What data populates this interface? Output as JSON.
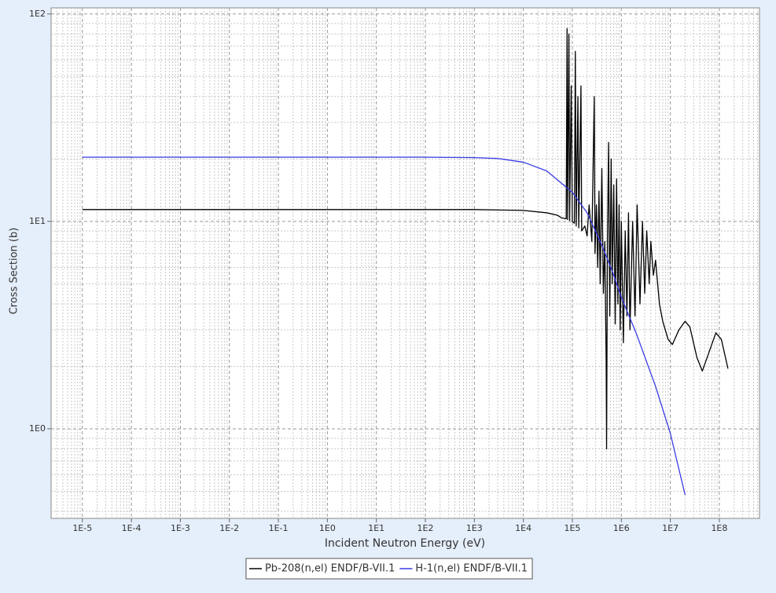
{
  "chart_data": {
    "type": "line",
    "x_label": "Incident Neutron Energy (eV)",
    "y_label": "Cross Section (b)",
    "log_x": true,
    "log_y": true,
    "grid": true,
    "legend": "bottom",
    "xlim": [
      2.3e-06,
      660000000.0
    ],
    "ylim": [
      0.37,
      107
    ],
    "xticks": [
      {
        "value": 1e-05,
        "label": "1E-5"
      },
      {
        "value": 0.0001,
        "label": "1E-4"
      },
      {
        "value": 0.001,
        "label": "1E-3"
      },
      {
        "value": 0.01,
        "label": "1E-2"
      },
      {
        "value": 0.1,
        "label": "1E-1"
      },
      {
        "value": 1,
        "label": "1E0"
      },
      {
        "value": 10,
        "label": "1E1"
      },
      {
        "value": 100,
        "label": "1E2"
      },
      {
        "value": 1000,
        "label": "1E3"
      },
      {
        "value": 10000,
        "label": "1E4"
      },
      {
        "value": 100000,
        "label": "1E5"
      },
      {
        "value": 1000000,
        "label": "1E6"
      },
      {
        "value": 10000000,
        "label": "1E7"
      },
      {
        "value": 100000000,
        "label": "1E8"
      }
    ],
    "yticks": [
      {
        "value": 1,
        "label": "1E0"
      },
      {
        "value": 10,
        "label": "1E1"
      },
      {
        "value": 100,
        "label": "1E2"
      }
    ],
    "series": [
      {
        "name": "Pb-208(n,el) ENDF/B-VII.1",
        "color": "#000000",
        "x": [
          1e-05,
          1000.0,
          10000.0,
          30000.0,
          50000.0,
          60000.0,
          75000.0,
          78000.0,
          80000.0,
          85000.0,
          88000.0,
          95000.0,
          100000.0,
          110000.0,
          115000.0,
          120000.0,
          130000.0,
          135000.0,
          150000.0,
          155000.0,
          180000.0,
          200000.0,
          220000.0,
          250000.0,
          280000.0,
          290000.0,
          310000.0,
          330000.0,
          350000.0,
          370000.0,
          400000.0,
          430000.0,
          460000.0,
          490000.0,
          500000.0,
          520000.0,
          550000.0,
          580000.0,
          620000.0,
          650000.0,
          700000.0,
          750000.0,
          800000.0,
          850000.0,
          900000.0,
          950000.0,
          1000000.0,
          1100000.0,
          1200000.0,
          1300000.0,
          1400000.0,
          1500000.0,
          1700000.0,
          1900000.0,
          2100000.0,
          2400000.0,
          2700000.0,
          3000000.0,
          3300000.0,
          3700000.0,
          4000000.0,
          4500000.0,
          5000000.0,
          5500000.0,
          6000000.0,
          7000000.0,
          9000000.0,
          11000000.0,
          15000000.0,
          20000000.0,
          25000000.0,
          35000000.0,
          45000000.0,
          60000000.0,
          85000000.0,
          110000000.0,
          150000000.0
        ],
        "values": [
          11.4,
          11.4,
          11.3,
          11.0,
          10.7,
          10.4,
          10.3,
          85,
          10.2,
          80,
          10.1,
          45,
          10,
          9.8,
          66,
          9.5,
          40,
          9.3,
          45,
          9.0,
          9.5,
          8.5,
          12,
          8,
          40,
          7,
          12,
          6,
          14,
          5,
          18,
          4.5,
          8,
          2.1,
          0.8,
          8,
          24,
          3.5,
          20,
          5,
          15,
          3.2,
          16,
          4,
          12,
          3,
          10,
          2.6,
          9,
          3.5,
          11,
          3.0,
          10,
          3.5,
          12,
          4,
          10,
          4.5,
          9,
          5,
          8,
          5.5,
          6.5,
          5,
          4,
          3.3,
          2.7,
          2.55,
          3,
          3.3,
          3.1,
          2.2,
          1.9,
          2.3,
          2.9,
          2.7,
          1.95
        ]
      },
      {
        "name": "H-1(n,el) ENDF/B-VII.1",
        "color": "#3a3ae6",
        "x": [
          1e-05,
          100.0,
          1000.0,
          3000.0,
          10000.0,
          30000.0,
          100000.0,
          200000.0,
          400000.0,
          700000.0,
          1000000.0,
          2000000.0,
          5000000.0,
          10000000.0,
          20000000.0
        ],
        "values": [
          20.4,
          20.4,
          20.3,
          20.1,
          19.3,
          17.5,
          13.8,
          11,
          7.7,
          5.5,
          4.3,
          2.9,
          1.6,
          0.95,
          0.48
        ]
      }
    ]
  }
}
